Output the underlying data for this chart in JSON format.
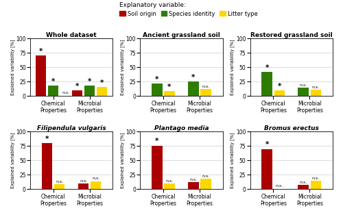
{
  "titles": [
    "Whole dataset",
    "Ancient grassland soil",
    "Restored grassland soil",
    "Filipendula vulgaris",
    "Plantago media",
    "Bromus erectus"
  ],
  "titles_italic": [
    false,
    false,
    false,
    true,
    true,
    true
  ],
  "colors": {
    "soil_origin": "#AA0000",
    "species_identity": "#2E7D00",
    "litter_type": "#FFD700"
  },
  "legend_colors": [
    "#AA0000",
    "#2E7D00",
    "#FFD700"
  ],
  "legend_labels": [
    "Soil origin",
    "Species identity",
    "Litter type"
  ],
  "bar_data": [
    {
      "chem": [
        71,
        18,
        1
      ],
      "micro": [
        10,
        18,
        16
      ],
      "chem_sig": [
        "*",
        "*",
        "n.s."
      ],
      "micro_sig": [
        "*",
        "*",
        "*"
      ]
    },
    {
      "chem": [
        0,
        22,
        9
      ],
      "micro": [
        0,
        25,
        12
      ],
      "chem_sig": [
        null,
        "*",
        "*"
      ],
      "micro_sig": [
        null,
        "*",
        "n.s."
      ]
    },
    {
      "chem": [
        0,
        42,
        10
      ],
      "micro": [
        0,
        15,
        11
      ],
      "chem_sig": [
        null,
        "*",
        "*"
      ],
      "micro_sig": [
        null,
        "n.s.",
        "n.s."
      ]
    },
    {
      "chem": [
        80,
        0,
        9
      ],
      "micro": [
        10,
        0,
        14
      ],
      "chem_sig": [
        "*",
        null,
        "n.s."
      ],
      "micro_sig": [
        "n.s.",
        null,
        "n.s."
      ]
    },
    {
      "chem": [
        76,
        0,
        10
      ],
      "micro": [
        12,
        0,
        18
      ],
      "chem_sig": [
        "*",
        null,
        "n.s."
      ],
      "micro_sig": [
        "n.s.",
        null,
        "n.s."
      ]
    },
    {
      "chem": [
        70,
        0,
        1
      ],
      "micro": [
        7,
        0,
        15
      ],
      "chem_sig": [
        "*",
        null,
        "n.s."
      ],
      "micro_sig": [
        "n.s.",
        null,
        "n.s."
      ]
    }
  ],
  "ylabel": "Explained variability [%]",
  "ylim": [
    0,
    100
  ],
  "yticks": [
    0,
    25,
    50,
    75,
    100
  ],
  "xlabel_groups": [
    "Chemical\nProperties",
    "Microbial\nProperties"
  ],
  "background_color": "#FFFFFF",
  "grid_color": "#CCCCCC"
}
